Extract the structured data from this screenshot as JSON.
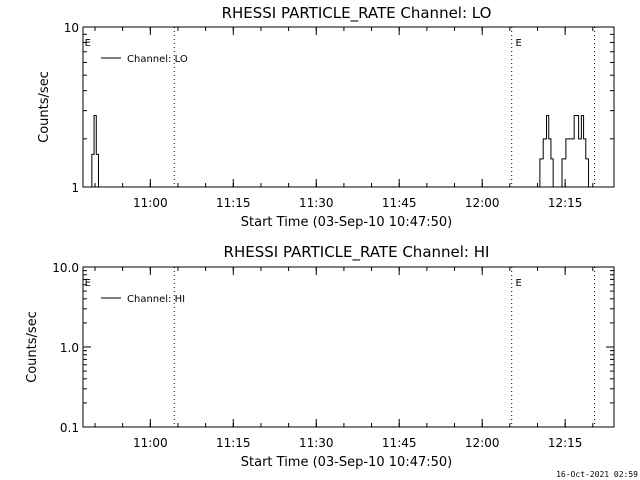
{
  "timestamp": "16-Oct-2021 02:59",
  "chart_data": [
    {
      "type": "line",
      "title": "RHESSI PARTICLE_RATE Channel: LO",
      "xlabel": "Start Time (03-Sep-10 10:47:50)",
      "ylabel": "Counts/sec",
      "y_scale": "log",
      "ylim": [
        1,
        10
      ],
      "yticks": [
        "1",
        "10"
      ],
      "xlim_minutes": [
        0,
        96
      ],
      "xticks": [
        "11:00",
        "11:15",
        "11:30",
        "11:45",
        "12:00",
        "12:15"
      ],
      "xtick_minutes": [
        12.17,
        27.17,
        42.17,
        57.17,
        72.17,
        87.17
      ],
      "event_lines_minutes": [
        16.5,
        77.5,
        92.5
      ],
      "event_labels": [
        {
          "text": "E",
          "minute": 0.3
        },
        {
          "text": "E",
          "minute": 78.2
        }
      ],
      "legend_position": "top-left",
      "series": [
        {
          "name": "Channel: LO",
          "x": [
            0,
            1.2,
            1.6,
            2.0,
            2.4,
            2.8,
            3.2,
            96
          ],
          "y": [
            1,
            1,
            1.6,
            2.8,
            1.6,
            1,
            1,
            1
          ],
          "segments": [
            {
              "x": [
                1.2,
                1.6,
                2.0,
                2.4,
                2.8,
                3.2
              ],
              "y": [
                1,
                1.6,
                2.8,
                1.6,
                1,
                1
              ]
            },
            {
              "x": [
                82.0,
                82.6,
                83.2,
                83.8,
                84.2,
                84.6,
                85.0
              ],
              "y": [
                1,
                1.5,
                2.0,
                2.8,
                2.0,
                1.5,
                1
              ]
            },
            {
              "x": [
                86.3,
                86.6,
                87.0,
                87.3,
                88.3,
                88.8,
                89.3,
                89.6,
                90.1,
                90.5,
                90.9,
                91.4
              ],
              "y": [
                1,
                1.5,
                1.5,
                2.0,
                2.0,
                2.8,
                2.8,
                2.0,
                2.8,
                2.0,
                1.5,
                1
              ]
            }
          ]
        }
      ]
    },
    {
      "type": "line",
      "title": "RHESSI PARTICLE_RATE Channel: HI",
      "xlabel": "Start Time (03-Sep-10 10:47:50)",
      "ylabel": "Counts/sec",
      "y_scale": "log",
      "ylim": [
        0.1,
        10
      ],
      "yticks": [
        "0.1",
        "1.0",
        "10.0"
      ],
      "xlim_minutes": [
        0,
        96
      ],
      "xticks": [
        "11:00",
        "11:15",
        "11:30",
        "11:45",
        "12:00",
        "12:15"
      ],
      "xtick_minutes": [
        12.17,
        27.17,
        42.17,
        57.17,
        72.17,
        87.17
      ],
      "event_lines_minutes": [
        16.5,
        77.5,
        92.5
      ],
      "event_labels": [
        {
          "text": "E",
          "minute": 0.3
        },
        {
          "text": "E",
          "minute": 78.2
        }
      ],
      "legend_position": "top-left",
      "series": [
        {
          "name": "Channel: HI",
          "segments": []
        }
      ]
    }
  ]
}
